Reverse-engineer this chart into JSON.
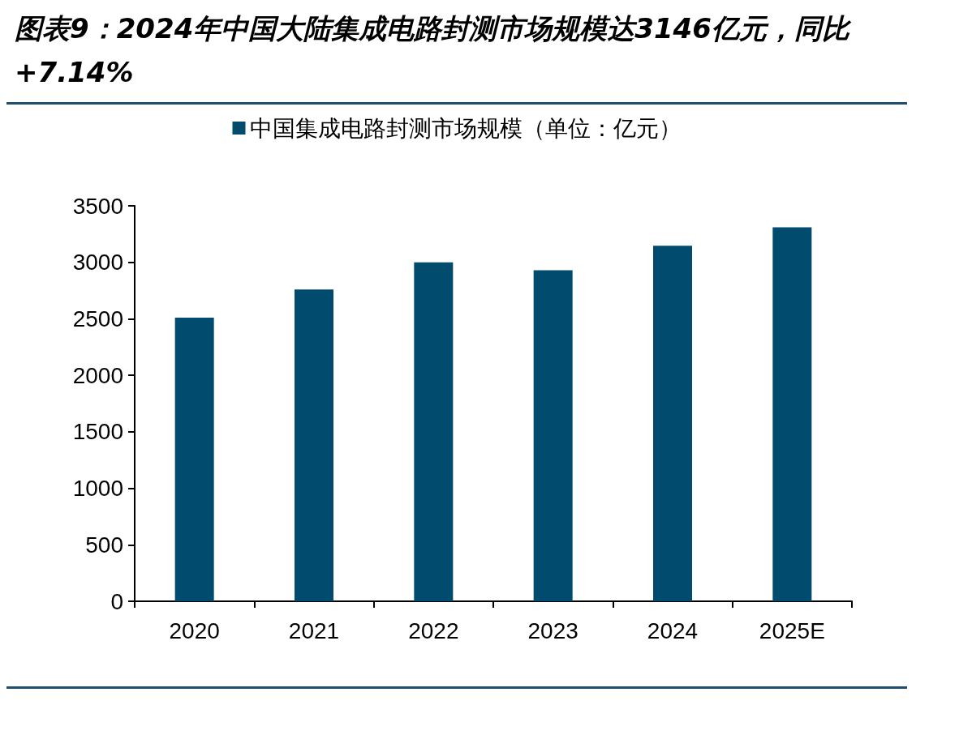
{
  "chart_data": {
    "type": "bar",
    "title": "图表9：2024年中国大陆集成电路封测市场规模达3146亿元，同比+7.14%",
    "categories": [
      "2020",
      "2021",
      "2022",
      "2023",
      "2024",
      "2025E"
    ],
    "series": [
      {
        "name": "中国集成电路封测市场规模（单位：亿元）",
        "color": "#004b6e",
        "values": [
          2510,
          2760,
          3000,
          2930,
          3146,
          3310
        ]
      }
    ],
    "ylim": [
      0,
      3500
    ],
    "yticks": [
      0,
      500,
      1000,
      1500,
      2000,
      2500,
      3000,
      3500
    ],
    "grid": false,
    "legend": "top"
  }
}
